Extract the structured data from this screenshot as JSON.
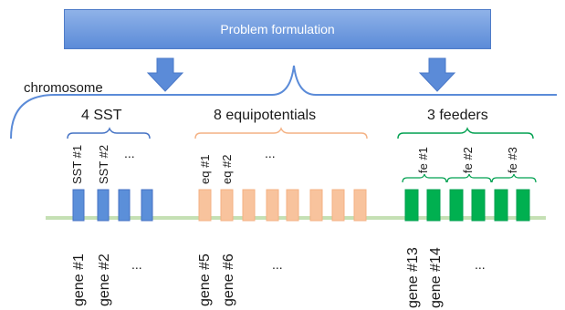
{
  "header": {
    "title": "Problem formulation"
  },
  "chromosome_label": "chromosome",
  "groups": [
    {
      "title": "4 SST",
      "color": "#4472c4",
      "fill": "#5b8fd9",
      "labels": [
        "SST #1",
        "SST #2"
      ],
      "ellipsis": "...",
      "gene_count": 4
    },
    {
      "title": "8 equipotentials",
      "color": "#f4b183",
      "fill": "#f8c39d",
      "labels": [
        "eq #1",
        "eq #2"
      ],
      "ellipsis": "...",
      "gene_count": 8
    },
    {
      "title": "3 feeders",
      "color": "#00a050",
      "fill": "#00b050",
      "labels": [
        "fe #1",
        "fe #2",
        "fe #3"
      ],
      "gene_count": 6
    }
  ],
  "gene_labels": {
    "sst": [
      "gene #1",
      "gene #2"
    ],
    "sst_ellipsis": "...",
    "eq": [
      "gene #5",
      "gene #6"
    ],
    "eq_ellipsis": "...",
    "fe": [
      "gene #13",
      "gene #14"
    ],
    "fe_ellipsis": "..."
  },
  "colors": {
    "arrow": "#5b8bd8",
    "baseline": "#c5e0b4",
    "brace": "#5b8bd8"
  }
}
